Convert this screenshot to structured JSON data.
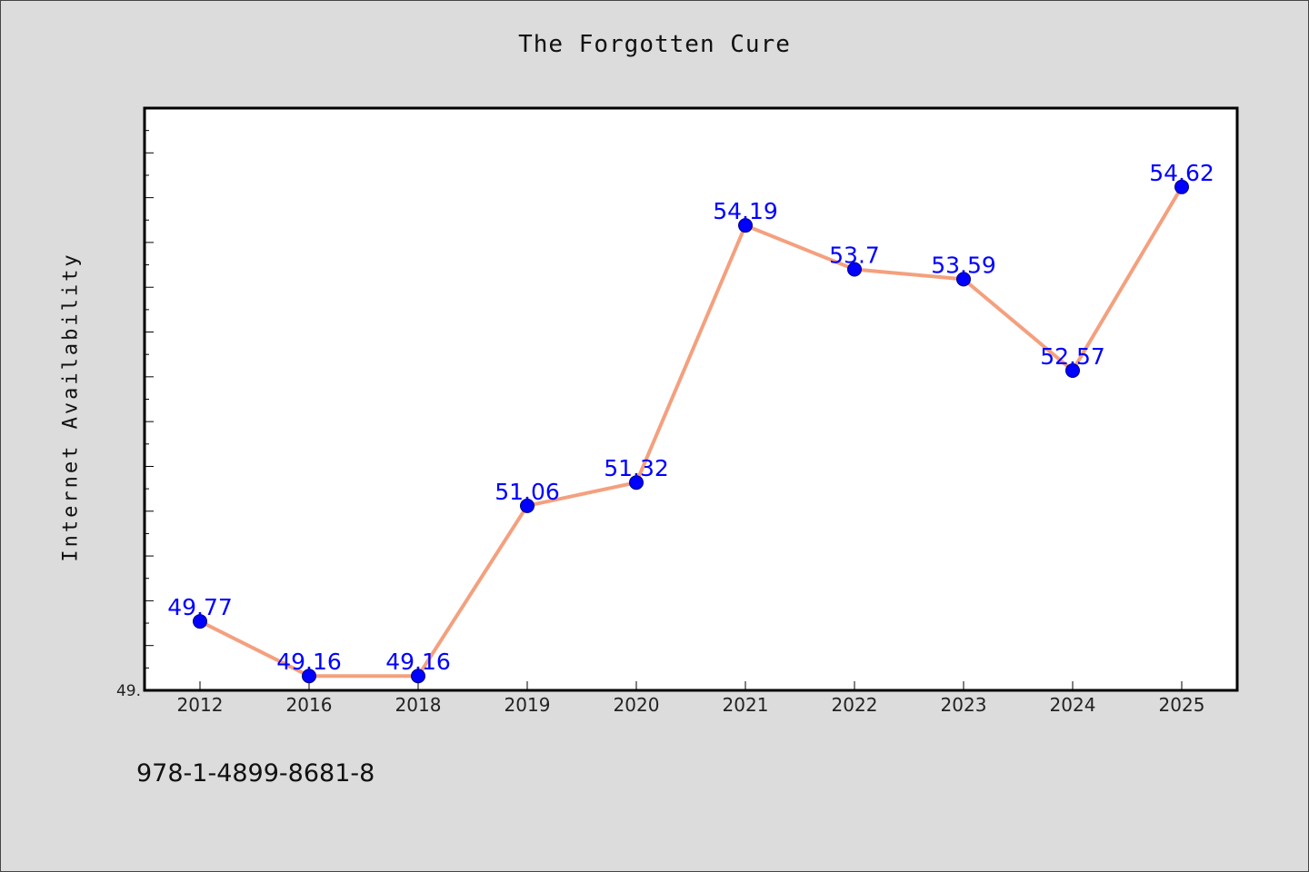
{
  "chart_data": {
    "type": "line",
    "title": "The Forgotten Cure",
    "xlabel": "",
    "ylabel": "Internet Availability",
    "categories": [
      "2012",
      "2016",
      "2018",
      "2019",
      "2020",
      "2021",
      "2022",
      "2023",
      "2024",
      "2025"
    ],
    "series": [
      {
        "values": [
          49.77,
          49.16,
          49.16,
          51.06,
          51.32,
          54.19,
          53.7,
          53.59,
          52.57,
          54.62
        ],
        "color": "#f4a07e"
      }
    ],
    "data_labels": [
      "49.77",
      "49.16",
      "49.16",
      "51.06",
      "51.32",
      "54.19",
      "53.7",
      "53.59",
      "52.57",
      "54.62"
    ],
    "y_tick_labels": [
      "49."
    ],
    "ylim": [
      49.0,
      55.5
    ],
    "grid": false,
    "marker_color": "#0000ff",
    "label_color": "#0000ff"
  },
  "footer": {
    "isbn": "978-1-4899-8681-8"
  }
}
